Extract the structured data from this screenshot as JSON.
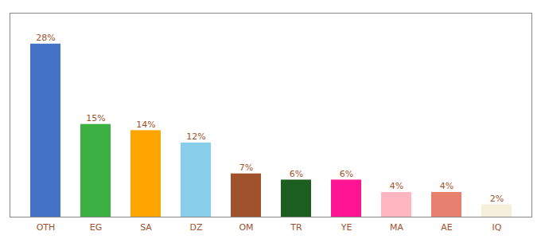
{
  "chart_data": {
    "type": "bar",
    "categories": [
      "OTH",
      "EG",
      "SA",
      "DZ",
      "OM",
      "TR",
      "YE",
      "MA",
      "AE",
      "IQ"
    ],
    "values": [
      28,
      15,
      14,
      12,
      7,
      6,
      6,
      4,
      4,
      2
    ],
    "value_labels": [
      "28%",
      "15%",
      "14%",
      "12%",
      "7%",
      "6%",
      "6%",
      "4%",
      "4%",
      "2%"
    ],
    "colors": [
      "#4472C4",
      "#3CB043",
      "#FFA500",
      "#87CEEB",
      "#A0522D",
      "#1B5E20",
      "#FF1493",
      "#FFB6C1",
      "#E88070",
      "#F5F0DC"
    ],
    "ylim": [
      0,
      33
    ],
    "yticks": [],
    "data_labels": true,
    "tick_labels": "x"
  }
}
